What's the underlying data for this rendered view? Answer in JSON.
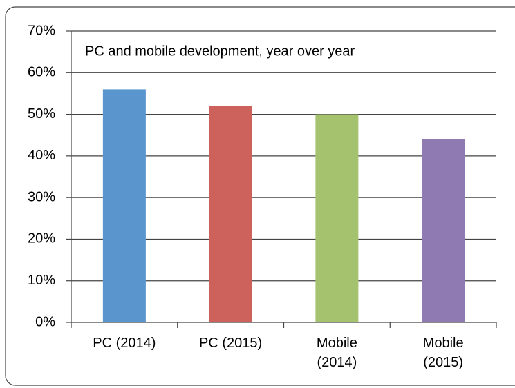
{
  "chart_data": {
    "type": "bar",
    "title": "PC and mobile development, year over year",
    "categories": [
      "PC (2014)",
      "PC (2015)",
      "Mobile (2014)",
      "Mobile (2015)"
    ],
    "values": [
      56,
      52,
      50,
      44
    ],
    "colors": [
      "#5b95cd",
      "#cd615c",
      "#a5c36e",
      "#8f7ab1"
    ],
    "ylim": [
      0,
      70
    ],
    "yticks": [
      {
        "value": 0,
        "label": "0%"
      },
      {
        "value": 10,
        "label": "10%"
      },
      {
        "value": 20,
        "label": "20%"
      },
      {
        "value": 30,
        "label": "30%"
      },
      {
        "value": 40,
        "label": "40%"
      },
      {
        "value": 50,
        "label": "50%"
      },
      {
        "value": 60,
        "label": "60%"
      },
      {
        "value": 70,
        "label": "70%"
      }
    ],
    "grid": true
  }
}
